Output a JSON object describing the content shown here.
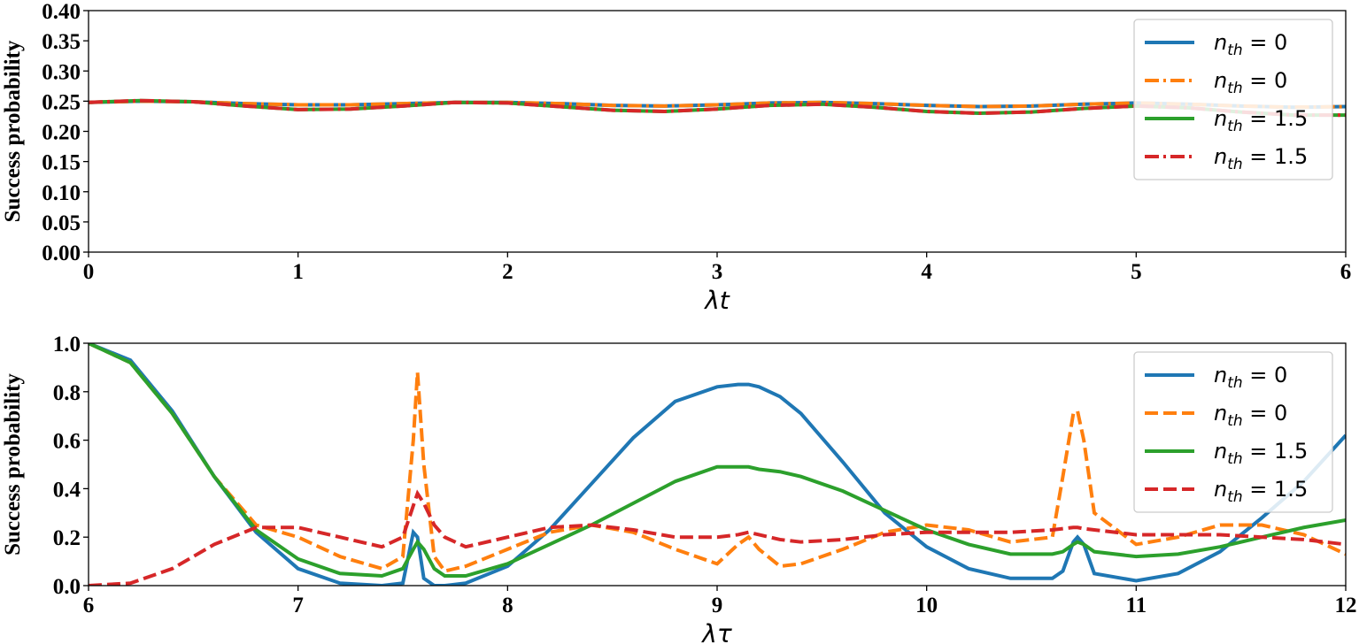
{
  "chart_data": [
    {
      "type": "line",
      "xlabel": "λt",
      "ylabel": "Success probability",
      "legend": "upper right",
      "x": [
        0,
        0.25,
        0.5,
        0.75,
        1,
        1.25,
        1.5,
        1.75,
        2,
        2.25,
        2.5,
        2.75,
        3,
        3.25,
        3.5,
        3.75,
        4,
        4.25,
        4.5,
        4.75,
        5,
        5.25,
        5.5,
        5.75,
        6
      ],
      "xlim": [
        0,
        6
      ],
      "xticks": [
        0,
        1,
        2,
        3,
        4,
        5,
        6
      ],
      "ylim": [
        0,
        0.4
      ],
      "yticks": [
        {
          "value": 0,
          "label": "0.00"
        },
        {
          "value": 0.05,
          "label": "0.05"
        },
        {
          "value": 0.1,
          "label": "0.10"
        },
        {
          "value": 0.15,
          "label": "0.15"
        },
        {
          "value": 0.2,
          "label": "0.20"
        },
        {
          "value": 0.25,
          "label": "0.25"
        },
        {
          "value": 0.3,
          "label": "0.30"
        },
        {
          "value": 0.35,
          "label": "0.35"
        },
        {
          "value": 0.4,
          "label": "0.40"
        }
      ],
      "series": [
        {
          "name": "n_th = 0",
          "color": "#1f77b4",
          "dash": "solid",
          "values": [
            0.248,
            0.25,
            0.249,
            0.246,
            0.244,
            0.244,
            0.246,
            0.248,
            0.248,
            0.246,
            0.243,
            0.242,
            0.244,
            0.247,
            0.248,
            0.246,
            0.243,
            0.241,
            0.242,
            0.245,
            0.247,
            0.245,
            0.242,
            0.24,
            0.241
          ]
        },
        {
          "name": "n_th = 0",
          "color": "#ff7f0e",
          "dash": "dashdot",
          "values": [
            0.248,
            0.25,
            0.249,
            0.246,
            0.244,
            0.244,
            0.246,
            0.248,
            0.248,
            0.246,
            0.243,
            0.242,
            0.244,
            0.247,
            0.248,
            0.246,
            0.243,
            0.241,
            0.242,
            0.245,
            0.247,
            0.245,
            0.242,
            0.24,
            0.241
          ]
        },
        {
          "name": "n_th = 1.5",
          "color": "#2ca02c",
          "dash": "solid",
          "values": [
            0.248,
            0.251,
            0.249,
            0.242,
            0.236,
            0.237,
            0.242,
            0.248,
            0.247,
            0.241,
            0.235,
            0.233,
            0.237,
            0.243,
            0.245,
            0.24,
            0.233,
            0.23,
            0.232,
            0.238,
            0.242,
            0.239,
            0.232,
            0.227,
            0.227
          ]
        },
        {
          "name": "n_th = 1.5",
          "color": "#d62728",
          "dash": "dashdot",
          "values": [
            0.248,
            0.251,
            0.249,
            0.242,
            0.236,
            0.237,
            0.242,
            0.248,
            0.247,
            0.241,
            0.235,
            0.233,
            0.237,
            0.243,
            0.245,
            0.24,
            0.233,
            0.23,
            0.232,
            0.238,
            0.242,
            0.239,
            0.232,
            0.227,
            0.227
          ]
        }
      ]
    },
    {
      "type": "line",
      "xlabel": "λτ",
      "ylabel": "Success probability",
      "legend": "upper right",
      "x": [
        6,
        6.2,
        6.4,
        6.6,
        6.8,
        7,
        7.2,
        7.4,
        7.5,
        7.55,
        7.57,
        7.6,
        7.65,
        7.7,
        7.8,
        8,
        8.2,
        8.4,
        8.6,
        8.8,
        9,
        9.1,
        9.15,
        9.2,
        9.3,
        9.4,
        9.6,
        9.8,
        10,
        10.2,
        10.4,
        10.6,
        10.65,
        10.7,
        10.72,
        10.75,
        10.8,
        11,
        11.2,
        11.4,
        11.6,
        11.8,
        12
      ],
      "xlim": [
        6,
        12
      ],
      "xticks": [
        6,
        7,
        8,
        9,
        10,
        11,
        12
      ],
      "ylim": [
        0,
        1
      ],
      "yticks": [
        {
          "value": 0,
          "label": "0.0"
        },
        {
          "value": 0.2,
          "label": "0.2"
        },
        {
          "value": 0.4,
          "label": "0.4"
        },
        {
          "value": 0.6,
          "label": "0.6"
        },
        {
          "value": 0.8,
          "label": "0.8"
        },
        {
          "value": 1,
          "label": "1.0"
        }
      ],
      "series": [
        {
          "name": "n_th = 0",
          "color": "#1f77b4",
          "dash": "solid",
          "values": [
            1,
            0.93,
            0.72,
            0.45,
            0.22,
            0.07,
            0.01,
            0,
            0.01,
            0.22,
            0.2,
            0.03,
            0,
            0,
            0.01,
            0.08,
            0.23,
            0.42,
            0.61,
            0.76,
            0.82,
            0.83,
            0.83,
            0.82,
            0.78,
            0.71,
            0.51,
            0.3,
            0.16,
            0.07,
            0.03,
            0.03,
            0.06,
            0.18,
            0.2,
            0.17,
            0.05,
            0.02,
            0.05,
            0.14,
            0.28,
            0.43,
            0.62
          ]
        },
        {
          "name": "n_th = 0",
          "color": "#ff7f0e",
          "dash": "dashed",
          "values": [
            1,
            0.92,
            0.71,
            0.45,
            0.25,
            0.2,
            0.12,
            0.07,
            0.12,
            0.6,
            0.88,
            0.5,
            0.12,
            0.06,
            0.08,
            0.15,
            0.22,
            0.25,
            0.22,
            0.15,
            0.09,
            0.17,
            0.2,
            0.15,
            0.08,
            0.09,
            0.15,
            0.22,
            0.25,
            0.23,
            0.18,
            0.2,
            0.45,
            0.71,
            0.72,
            0.6,
            0.3,
            0.17,
            0.2,
            0.25,
            0.25,
            0.21,
            0.13
          ]
        },
        {
          "name": "n_th = 1.5",
          "color": "#2ca02c",
          "dash": "solid",
          "values": [
            1,
            0.92,
            0.71,
            0.45,
            0.23,
            0.11,
            0.05,
            0.04,
            0.07,
            0.15,
            0.18,
            0.15,
            0.07,
            0.04,
            0.04,
            0.09,
            0.17,
            0.25,
            0.34,
            0.43,
            0.49,
            0.49,
            0.49,
            0.48,
            0.47,
            0.45,
            0.39,
            0.31,
            0.23,
            0.17,
            0.13,
            0.13,
            0.14,
            0.17,
            0.18,
            0.17,
            0.14,
            0.12,
            0.13,
            0.16,
            0.2,
            0.24,
            0.27
          ]
        },
        {
          "name": "n_th = 1.5",
          "color": "#d62728",
          "dash": "dashed",
          "values": [
            0,
            0.01,
            0.07,
            0.17,
            0.24,
            0.24,
            0.2,
            0.16,
            0.2,
            0.33,
            0.38,
            0.34,
            0.25,
            0.2,
            0.16,
            0.2,
            0.24,
            0.25,
            0.23,
            0.2,
            0.2,
            0.21,
            0.22,
            0.21,
            0.19,
            0.18,
            0.19,
            0.21,
            0.22,
            0.22,
            0.22,
            0.23,
            0.235,
            0.24,
            0.24,
            0.235,
            0.23,
            0.21,
            0.21,
            0.21,
            0.2,
            0.19,
            0.17
          ]
        }
      ]
    }
  ]
}
